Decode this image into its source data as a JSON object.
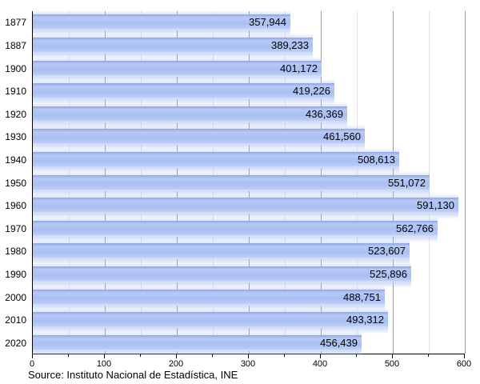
{
  "chart_data": {
    "type": "bar",
    "orientation": "horizontal",
    "title": "",
    "xlabel": "",
    "ylabel": "",
    "categories": [
      "1877",
      "1887",
      "1900",
      "1910",
      "1920",
      "1930",
      "1940",
      "1950",
      "1960",
      "1970",
      "1980",
      "1990",
      "2000",
      "2010",
      "2020"
    ],
    "values": [
      357944,
      389233,
      401172,
      419226,
      436369,
      461560,
      508613,
      551072,
      591130,
      562766,
      523607,
      525896,
      488751,
      493312,
      456439
    ],
    "value_labels": [
      "357,944",
      "389,233",
      "401,172",
      "419,226",
      "436,369",
      "461,560",
      "508,613",
      "551,072",
      "591,130",
      "562,766",
      "523,607",
      "525,896",
      "488,751",
      "493,312",
      "456,439"
    ],
    "xlim": [
      0,
      600000
    ],
    "x_tick_labels": [
      "0",
      "100",
      "200",
      "300",
      "400",
      "500",
      "600"
    ],
    "x_major_tick_step": 100000,
    "x_minor_tick_step": 50000,
    "grid": true,
    "legend_position": "none",
    "bar_color": "#aec3f3"
  },
  "footer": {
    "source": "Source: Instituto Nacional de Estadística, INE"
  },
  "colors": {
    "bar_main": "#aec3f3",
    "bar_top_edge": "#8fa6e0",
    "bar_bottom_edge": "#dde7fc",
    "grid_major": "#9c9c9c",
    "grid_minor": "#e4e4e4",
    "axis": "#000000",
    "text": "#000000",
    "background": "#ffffff"
  }
}
